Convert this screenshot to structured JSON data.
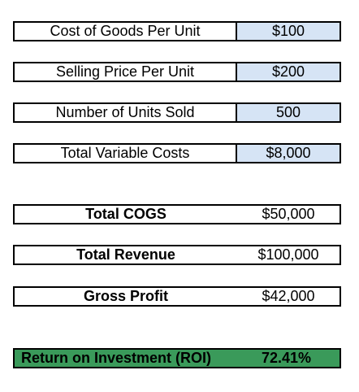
{
  "inputs": [
    {
      "label": "Cost of Goods Per Unit",
      "value": "$100"
    },
    {
      "label": "Selling Price Per Unit",
      "value": "$200"
    },
    {
      "label": "Number of Units Sold",
      "value": "500"
    },
    {
      "label": "Total Variable Costs",
      "value": "$8,000"
    }
  ],
  "summary": [
    {
      "label": "Total COGS",
      "value": "$50,000"
    },
    {
      "label": "Total Revenue",
      "value": "$100,000"
    },
    {
      "label": "Gross Profit",
      "value": "$42,000"
    }
  ],
  "roi": {
    "label": "Return on Investment (ROI)",
    "value": "72.41%"
  },
  "colors": {
    "input_fill": "#d6e4f5",
    "roi_fill": "#3a9a5a",
    "border": "#000000"
  }
}
